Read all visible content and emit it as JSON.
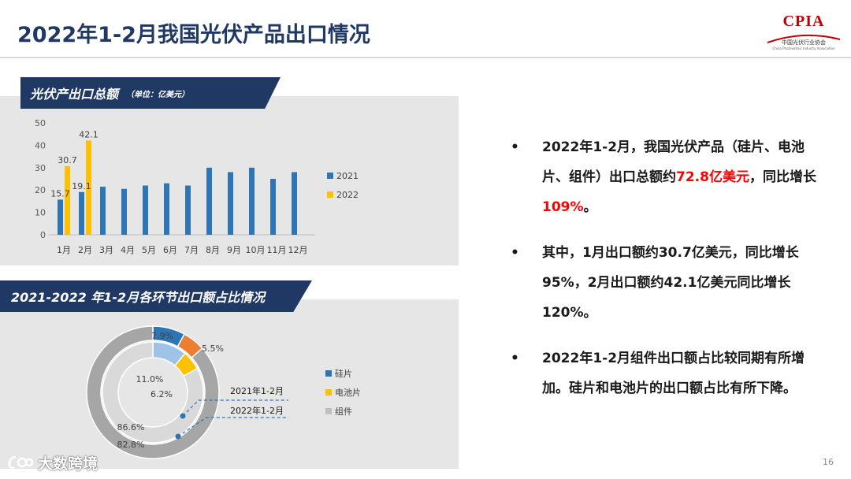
{
  "slide": {
    "title": "2022年1-2月我国光伏产品出口情况",
    "page_number": "16",
    "logo": {
      "main": "CPIA",
      "sub": "中国光伏行业协会",
      "sub_en": "China Photovoltaic Industry Association"
    },
    "watermark": "大数跨境"
  },
  "chart_data": [
    {
      "type": "bar",
      "title": "光伏产出口总额",
      "unit_note": "（单位：亿美元）",
      "categories": [
        "1月",
        "2月",
        "3月",
        "4月",
        "5月",
        "6月",
        "7月",
        "8月",
        "9月",
        "10月",
        "11月",
        "12月"
      ],
      "series": [
        {
          "name": "2021",
          "color": "#2e75b6",
          "values": [
            15.7,
            19.1,
            21.5,
            20.5,
            22,
            23,
            22,
            30,
            28,
            30,
            25,
            28
          ]
        },
        {
          "name": "2022",
          "color": "#ffc000",
          "values": [
            30.7,
            42.1,
            null,
            null,
            null,
            null,
            null,
            null,
            null,
            null,
            null,
            null
          ]
        }
      ],
      "data_labels": [
        {
          "series": "2021",
          "index": 0,
          "text": "15.7"
        },
        {
          "series": "2021",
          "index": 1,
          "text": "19.1"
        },
        {
          "series": "2022",
          "index": 0,
          "text": "30.7"
        },
        {
          "series": "2022",
          "index": 1,
          "text": "42.1"
        }
      ],
      "yticks": [
        0,
        10,
        20,
        30,
        40,
        50
      ],
      "ylim": [
        0,
        50
      ],
      "legend_position": "right",
      "grid": false
    },
    {
      "type": "pie",
      "variant": "nested-donut",
      "title": "2021-2022 年1-2月各环节出口额占比情况",
      "categories": [
        "硅片",
        "电池片",
        "组件"
      ],
      "colors": [
        "#2e75b6",
        "#ffc000",
        "#bfbfbf"
      ],
      "series": [
        {
          "name": "2021年1-2月",
          "ring": "inner",
          "values": [
            11.0,
            6.2,
            82.8
          ],
          "colors": [
            "#9dc3e6",
            "#ffc000",
            "#d9d9d9"
          ],
          "labels": [
            "11.0%",
            "6.2%",
            "82.8%"
          ]
        },
        {
          "name": "2022年1-2月",
          "ring": "outer",
          "values": [
            7.9,
            5.5,
            86.6
          ],
          "colors": [
            "#2e75b6",
            "#ed7d31",
            "#a6a6a6"
          ],
          "labels": [
            "7.9%",
            "5.5%",
            "86.6%"
          ]
        }
      ],
      "legend_position": "right"
    }
  ],
  "bullets": [
    {
      "parts": [
        {
          "text": "2022年1-2月，我国光伏产品（硅片、电池片、组件）出口总额约",
          "highlight": false
        },
        {
          "text": "72.8亿美元",
          "highlight": true
        },
        {
          "text": "，同比增长",
          "highlight": false
        },
        {
          "text": "109%",
          "highlight": true
        },
        {
          "text": "。",
          "highlight": false
        }
      ]
    },
    {
      "parts": [
        {
          "text": "其中，1月出口额约30.7亿美元，同比增长95%，2月出口额约42.1亿美元同比增长120%。",
          "highlight": false
        }
      ]
    },
    {
      "parts": [
        {
          "text": "2022年1-2月组件出口额占比较同期有所增加。硅片和电池片的出口额占比有所下降。",
          "highlight": false
        }
      ]
    }
  ]
}
